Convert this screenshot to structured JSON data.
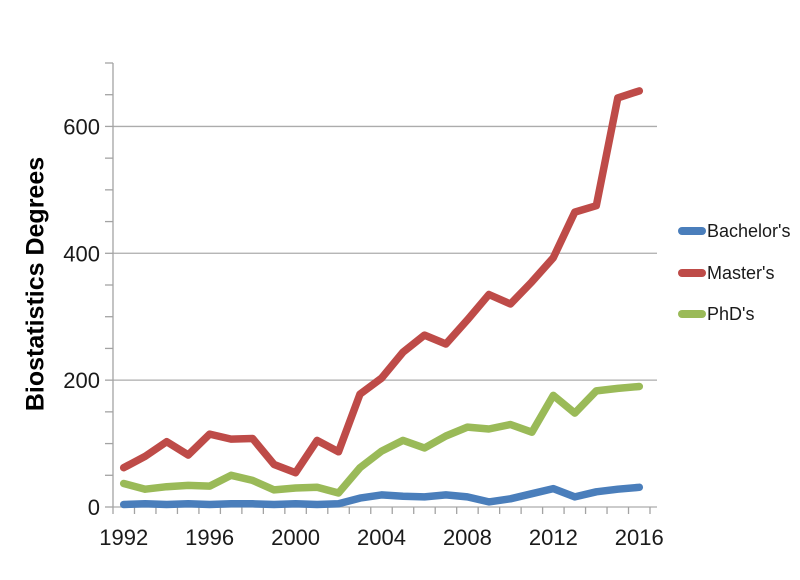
{
  "chart_data": {
    "type": "line",
    "title": "",
    "xlabel": "",
    "ylabel": "Biostatistics Degrees",
    "x": [
      1992,
      1993,
      1994,
      1995,
      1996,
      1997,
      1998,
      1999,
      2000,
      2001,
      2002,
      2003,
      2004,
      2005,
      2006,
      2007,
      2008,
      2009,
      2010,
      2011,
      2012,
      2013,
      2014,
      2015,
      2016
    ],
    "x_tick_labels": [
      "1992",
      "1996",
      "2000",
      "2004",
      "2008",
      "2012",
      "2016"
    ],
    "x_tick_label_step": 4,
    "series": [
      {
        "name": "Bachelor's",
        "color": "#4A7EBB",
        "values": [
          4,
          5,
          4,
          5,
          4,
          5,
          5,
          4,
          5,
          4,
          5,
          14,
          19,
          17,
          16,
          19,
          16,
          8,
          13,
          21,
          29,
          16,
          24,
          28,
          31
        ]
      },
      {
        "name": "Master's",
        "color": "#BE4B48",
        "values": [
          62,
          80,
          103,
          82,
          115,
          107,
          108,
          67,
          54,
          105,
          87,
          178,
          203,
          244,
          271,
          257,
          295,
          335,
          320,
          355,
          393,
          465,
          475,
          645,
          656
        ]
      },
      {
        "name": "PhD's",
        "color": "#9ABA58",
        "values": [
          37,
          28,
          32,
          34,
          33,
          50,
          42,
          27,
          30,
          31,
          22,
          62,
          88,
          105,
          93,
          112,
          126,
          123,
          130,
          118,
          176,
          148,
          183,
          187,
          190
        ]
      }
    ],
    "ylim": [
      0,
      700
    ],
    "y_major_ticks": [
      0,
      200,
      400,
      600
    ],
    "y_minor_step": 50,
    "grid": true,
    "legend_position": "right",
    "axis_color": "#A3A3A3",
    "gridline_color": "#ACACAC",
    "tick_label_color": "#1a1a1a"
  }
}
